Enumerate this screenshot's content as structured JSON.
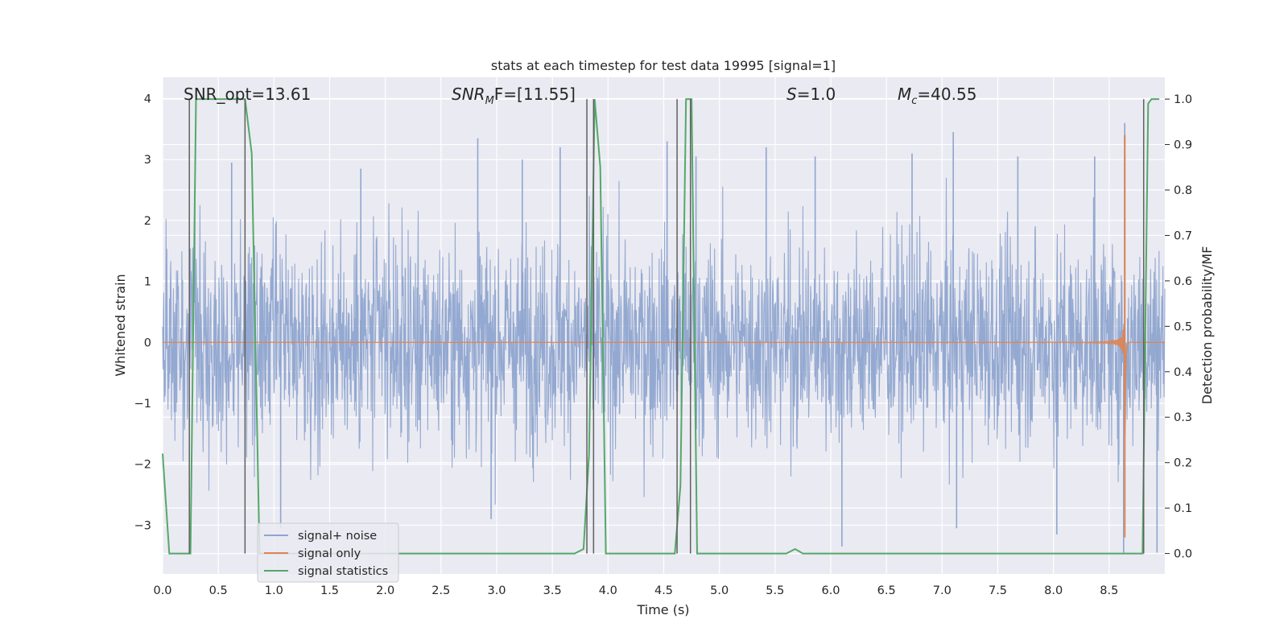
{
  "chart_data": {
    "type": "line",
    "title": "stats at each timestep for test data 19995 [signal=1]",
    "xlabel": "Time (s)",
    "ylabel": "Whitened strain",
    "y2label": "Detection probability/MF",
    "xlim": [
      0.0,
      9.0
    ],
    "ylim": [
      -3.8,
      4.35
    ],
    "y2lim": [
      -0.045,
      1.048
    ],
    "x_ticks": [
      "0.0",
      "0.5",
      "1.0",
      "1.5",
      "2.0",
      "2.5",
      "3.0",
      "3.5",
      "4.0",
      "4.5",
      "5.0",
      "5.5",
      "6.0",
      "6.5",
      "7.0",
      "7.5",
      "8.0",
      "8.5"
    ],
    "x_tick_values": [
      0,
      0.5,
      1,
      1.5,
      2,
      2.5,
      3,
      3.5,
      4,
      4.5,
      5,
      5.5,
      6,
      6.5,
      7,
      7.5,
      8,
      8.5
    ],
    "y_ticks": [
      "4",
      "3",
      "2",
      "1",
      "0",
      "−1",
      "−2",
      "−3"
    ],
    "y_tick_values": [
      4,
      3,
      2,
      1,
      0,
      -1,
      -2,
      -3
    ],
    "y2_ticks": [
      "1.0",
      "0.9",
      "0.8",
      "0.7",
      "0.6",
      "0.5",
      "0.4",
      "0.3",
      "0.2",
      "0.1",
      "0.0"
    ],
    "y2_tick_values": [
      1.0,
      0.9,
      0.8,
      0.7,
      0.6,
      0.5,
      0.4,
      0.3,
      0.2,
      0.1,
      0.0
    ],
    "annotations": [
      {
        "id": "snr-opt",
        "text": "SNR_opt=13.61"
      },
      {
        "id": "snr-mf",
        "prefix": "SNR",
        "sub": "M",
        "suffix": "F=[11.55]"
      },
      {
        "id": "s-val",
        "prefix": "S",
        "suffix": "=1.0"
      },
      {
        "id": "mc-val",
        "prefix": "M",
        "sub": "c",
        "suffix": "=40.55"
      }
    ],
    "legend": {
      "position": "lower-left",
      "entries": [
        {
          "label": "signal+ noise",
          "color": "#8fa5cf"
        },
        {
          "label": "signal only",
          "color": "#dd8452"
        },
        {
          "label": "signal statistics",
          "color": "#55a868"
        }
      ]
    },
    "series": [
      {
        "name": "signal+ noise",
        "axis": "left",
        "color": "#8fa5cf",
        "description": "whitened noisy strain, roughly within ±2.5 with spikes up to ~3.6",
        "spikes": [
          [
            0.62,
            2.95
          ],
          [
            1.78,
            2.85
          ],
          [
            2.83,
            3.35
          ],
          [
            3.23,
            3.0
          ],
          [
            3.57,
            3.2
          ],
          [
            4.53,
            3.3
          ],
          [
            4.79,
            3.05
          ],
          [
            5.42,
            3.2
          ],
          [
            5.86,
            3.05
          ],
          [
            6.73,
            3.1
          ],
          [
            7.1,
            3.45
          ],
          [
            7.68,
            3.05
          ],
          [
            8.37,
            3.05
          ],
          [
            8.64,
            3.6
          ],
          [
            1.06,
            -3.05
          ],
          [
            2.95,
            -2.9
          ],
          [
            6.1,
            -3.35
          ],
          [
            7.13,
            -3.05
          ],
          [
            8.03,
            -3.15
          ],
          [
            8.63,
            -3.45
          ],
          [
            8.93,
            -3.45
          ]
        ]
      },
      {
        "name": "signal only",
        "axis": "left",
        "color": "#dd8452",
        "description": "chirp waveform starting ~3.9 s, growing to merger at ~8.64 s",
        "t_start": 3.9,
        "t_merger": 8.64,
        "peak_amplitude": 3.4,
        "trough_amplitude": -3.2
      },
      {
        "name": "signal statistics",
        "axis": "right",
        "color": "#55a868",
        "x": [
          0.0,
          0.06,
          0.2,
          0.25,
          0.3,
          0.7,
          0.74,
          0.8,
          0.87,
          0.9,
          3.7,
          3.78,
          3.83,
          3.88,
          3.93,
          3.98,
          4.6,
          4.65,
          4.7,
          4.75,
          4.8,
          4.85,
          5.6,
          5.68,
          5.75,
          8.8,
          8.85,
          8.88,
          8.95
        ],
        "y": [
          0.22,
          0.0,
          0.0,
          0.0,
          1.0,
          1.0,
          1.0,
          0.88,
          0.0,
          0.0,
          0.0,
          0.01,
          0.22,
          1.0,
          0.85,
          0.0,
          0.0,
          0.15,
          1.0,
          1.0,
          0.0,
          0.0,
          0.0,
          0.01,
          0.0,
          0.0,
          0.99,
          1.0,
          1.0
        ]
      }
    ],
    "vlines": [
      0.24,
      0.74,
      3.81,
      3.87,
      4.62,
      4.74,
      8.81
    ],
    "vline_color": "#606060"
  }
}
